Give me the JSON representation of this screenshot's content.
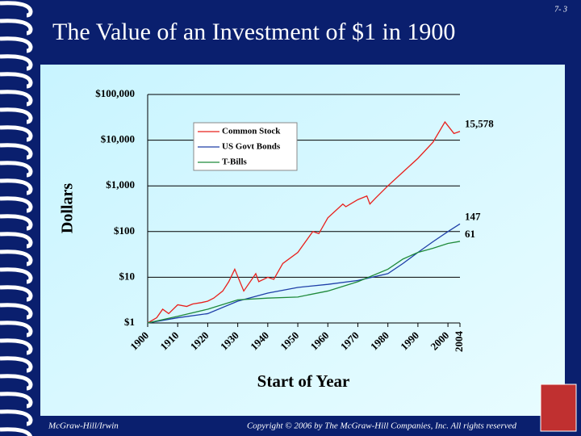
{
  "slide_number": "7- 3",
  "footer_left": "McGraw-Hill/Irwin",
  "footer_right": "Copyright © 2006 by The McGraw-Hill Companies, Inc. All rights reserved",
  "chart_data": {
    "type": "line",
    "title": "The Value of an Investment of $1 in 1900",
    "ylabel": "Dollars",
    "xlabel": "Start of Year",
    "log_y": true,
    "grid": true,
    "legend": "upper left",
    "xlim": [
      1900,
      2004
    ],
    "xticks": [
      1900,
      1910,
      1920,
      1930,
      1940,
      1950,
      1960,
      1970,
      1980,
      1990,
      2000,
      2004
    ],
    "ylim": [
      1,
      100000
    ],
    "yticks": [
      {
        "value": 1,
        "label": "$1"
      },
      {
        "value": 10,
        "label": "$10"
      },
      {
        "value": 100,
        "label": "$100"
      },
      {
        "value": 1000,
        "label": "$1,000"
      },
      {
        "value": 10000,
        "label": "$10,000"
      },
      {
        "value": 100000,
        "label": "$100,000"
      }
    ],
    "series": [
      {
        "name": "Common Stock",
        "color": "#e8201c",
        "x": [
          1900,
          1903,
          1905,
          1907,
          1910,
          1913,
          1915,
          1918,
          1920,
          1922,
          1925,
          1927,
          1929,
          1932,
          1936,
          1937,
          1940,
          1942,
          1945,
          1950,
          1955,
          1957,
          1960,
          1965,
          1966,
          1970,
          1973,
          1974,
          1976,
          1980,
          1985,
          1990,
          1995,
          1999,
          2002,
          2004
        ],
        "values": [
          1,
          1.3,
          2,
          1.6,
          2.5,
          2.3,
          2.6,
          2.8,
          3,
          3.5,
          5,
          8,
          15,
          5,
          12,
          8,
          10,
          9,
          20,
          35,
          100,
          90,
          200,
          400,
          350,
          500,
          600,
          400,
          550,
          1000,
          2000,
          4000,
          9000,
          25000,
          14000,
          15578
        ],
        "end_label": "15,578"
      },
      {
        "name": "US Govt Bonds",
        "color": "#1f3fa8",
        "x": [
          1900,
          1910,
          1920,
          1930,
          1940,
          1950,
          1960,
          1970,
          1980,
          1985,
          1990,
          1995,
          2000,
          2004
        ],
        "values": [
          1,
          1.3,
          1.6,
          3,
          4.5,
          6,
          7,
          8.5,
          12,
          20,
          35,
          60,
          100,
          147
        ],
        "end_label": "147"
      },
      {
        "name": "T-Bills",
        "color": "#1f8a3a",
        "x": [
          1900,
          1910,
          1920,
          1930,
          1940,
          1950,
          1960,
          1970,
          1980,
          1985,
          1990,
          1995,
          2000,
          2004
        ],
        "values": [
          1,
          1.4,
          2,
          3.2,
          3.5,
          3.7,
          5,
          8,
          15,
          25,
          35,
          43,
          55,
          61
        ],
        "end_label": "61"
      }
    ]
  }
}
